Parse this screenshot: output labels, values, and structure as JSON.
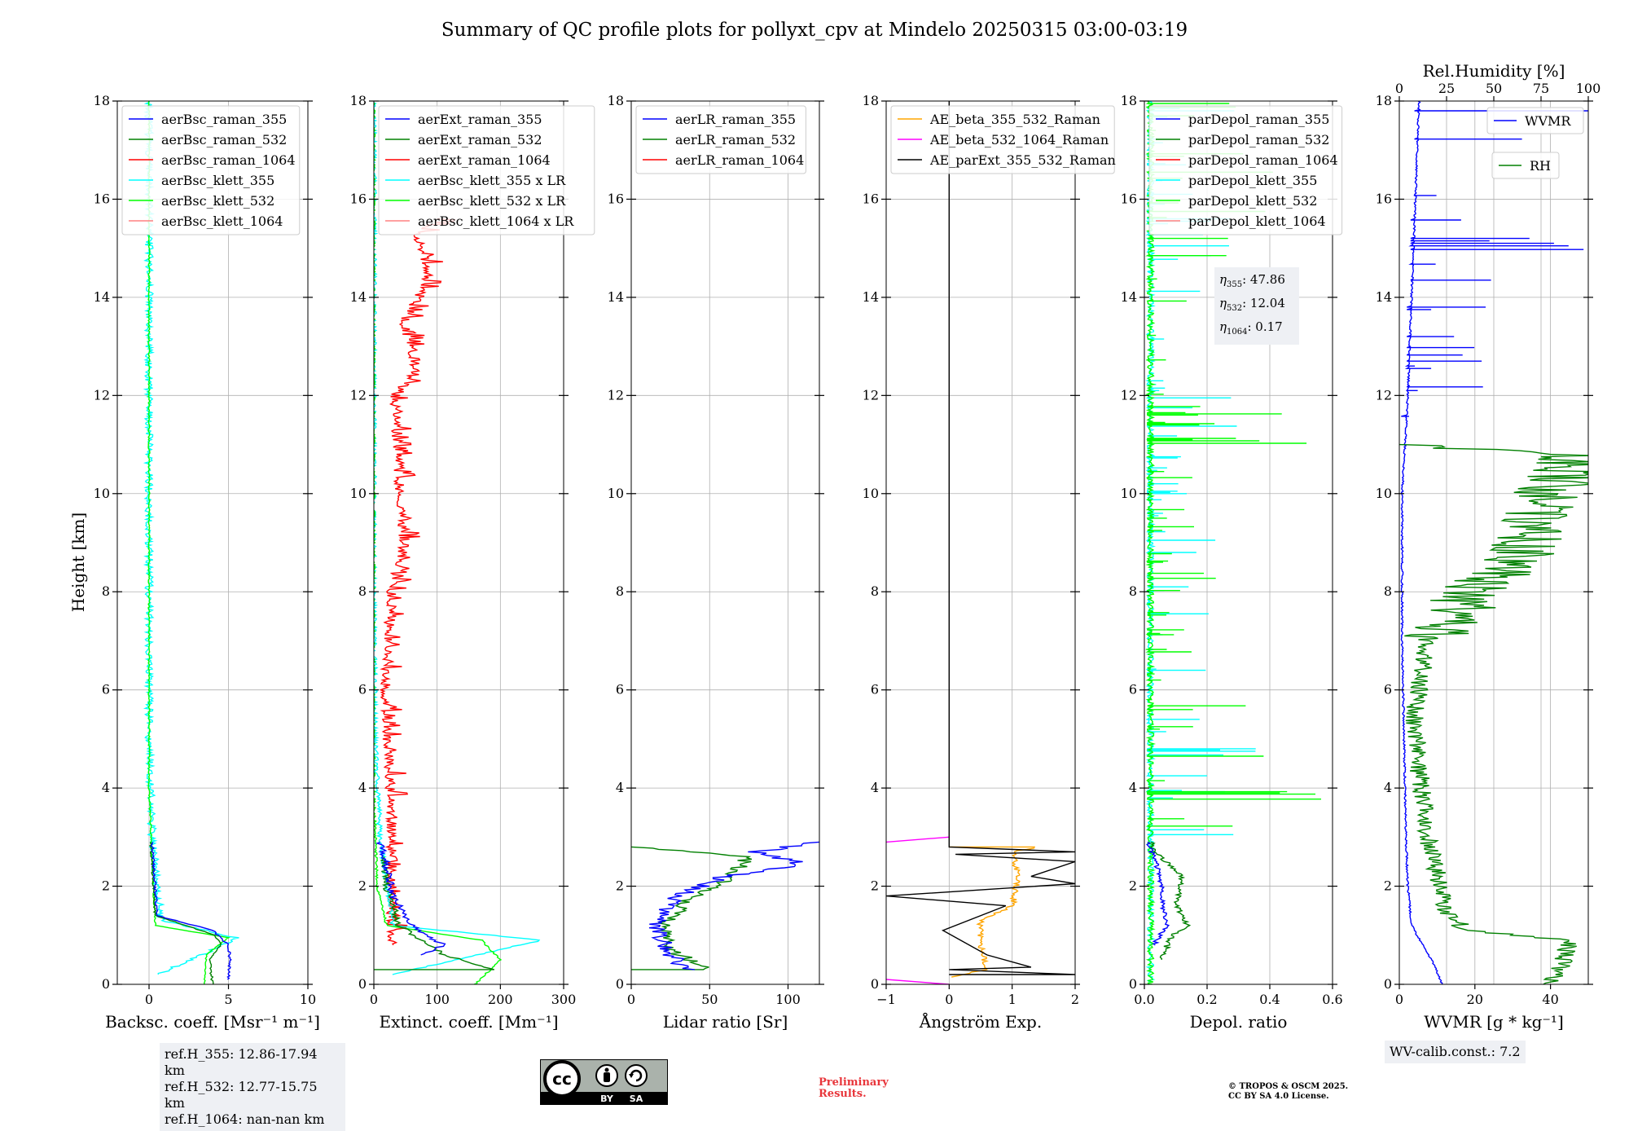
{
  "title": "Summary of QC profile plots for pollyxt_cpv at Mindelo 20250315 03:00-03:19",
  "ylabel": "Height [km]",
  "colors": {
    "blue": "#0000ff",
    "green": "#008000",
    "red": "#ff0000",
    "cyan": "#00ffff",
    "lime": "#00ff00",
    "salmon": "#ff8080",
    "orange": "#ffa500",
    "magenta": "#ff00ff",
    "black": "#000000",
    "grid": "#b0b0b0"
  },
  "chart_data": [
    {
      "type": "line",
      "id": "bsc",
      "xlabel": "Backsc. coeff. [Msr⁻¹ m⁻¹]",
      "xlim": [
        -2,
        10
      ],
      "ylim": [
        0,
        18
      ],
      "xticks": [
        0,
        5,
        10
      ],
      "yticks": [
        0,
        2,
        4,
        6,
        8,
        10,
        12,
        14,
        16,
        18
      ],
      "legend": [
        "aerBsc_raman_355",
        "aerBsc_raman_532",
        "aerBsc_raman_1064",
        "aerBsc_klett_355",
        "aerBsc_klett_532",
        "aerBsc_klett_1064"
      ],
      "legend_colors": [
        "blue",
        "green",
        "red",
        "cyan",
        "lime",
        "salmon"
      ],
      "series": [
        {
          "name": "aerBsc_klett_355",
          "color": "cyan",
          "style": "noisy",
          "pts": [
            [
              0.5,
              0.2
            ],
            [
              4,
              0.7
            ],
            [
              5.5,
              0.95
            ],
            [
              0.8,
              1.3
            ],
            [
              0.5,
              2.0
            ],
            [
              0.2,
              3.0
            ],
            [
              0,
              5
            ],
            [
              0,
              8
            ],
            [
              0,
              10
            ],
            [
              0,
              12
            ],
            [
              0,
              14
            ],
            [
              0,
              16
            ],
            [
              0,
              18
            ]
          ],
          "noise": 0.25
        },
        {
          "name": "aerBsc_klett_532",
          "color": "lime",
          "style": "noisy",
          "pts": [
            [
              3.5,
              0.0
            ],
            [
              3.6,
              0.6
            ],
            [
              5,
              0.95
            ],
            [
              0.4,
              1.2
            ],
            [
              0.2,
              2.5
            ],
            [
              0,
              4
            ],
            [
              0,
              8
            ],
            [
              0,
              12
            ],
            [
              0,
              18
            ]
          ],
          "noise": 0.05
        },
        {
          "name": "aerBsc_raman_532",
          "color": "green",
          "style": "noisy",
          "pts": [
            [
              4,
              0.0
            ],
            [
              3.8,
              0.5
            ],
            [
              4.5,
              0.8
            ],
            [
              4.2,
              1.0
            ],
            [
              0.4,
              1.4
            ],
            [
              0.2,
              2.5
            ],
            [
              0.1,
              2.9
            ]
          ],
          "noise": 0.08
        },
        {
          "name": "aerBsc_raman_355",
          "color": "blue",
          "style": "noisy",
          "pts": [
            [
              5,
              0.1
            ],
            [
              5.1,
              0.5
            ],
            [
              5,
              0.8
            ],
            [
              4,
              1.1
            ],
            [
              0.5,
              1.4
            ],
            [
              0.3,
              2.4
            ],
            [
              0.2,
              2.9
            ]
          ],
          "noise": 0.08
        }
      ],
      "refbox": [
        "ref.H_355: 12.86-17.94 km",
        "ref.H_532: 12.77-15.75 km",
        "ref.H_1064: nan-nan km"
      ]
    },
    {
      "type": "line",
      "id": "ext",
      "xlabel": "Extinct. coeff. [Mm⁻¹]",
      "xlim": [
        0,
        300
      ],
      "ylim": [
        0,
        18
      ],
      "xticks": [
        0,
        100,
        200,
        300
      ],
      "yticks": [
        0,
        2,
        4,
        6,
        8,
        10,
        12,
        14,
        16,
        18
      ],
      "legend": [
        "aerExt_raman_355",
        "aerExt_raman_532",
        "aerExt_raman_1064",
        "aerBsc_klett_355 x LR",
        "aerBsc_klett_532 x LR",
        "aerBsc_klett_1064 x LR"
      ],
      "legend_colors": [
        "blue",
        "green",
        "red",
        "cyan",
        "lime",
        "salmon"
      ],
      "series": [
        {
          "name": "aerExt_raman_1064",
          "color": "red",
          "style": "spiky",
          "pts": [
            [
              20,
              0.8
            ],
            [
              20,
              3.5
            ],
            [
              10,
              6
            ],
            [
              20,
              8
            ],
            [
              40,
              9
            ],
            [
              30,
              10.5
            ],
            [
              25,
              12
            ],
            [
              60,
              12.5
            ],
            [
              40,
              13.5
            ],
            [
              80,
              14.5
            ],
            [
              60,
              15.3
            ],
            [
              100,
              15.6
            ]
          ],
          "noise": 25
        },
        {
          "name": "aerBsc_klett_355 x LR",
          "color": "cyan",
          "style": "noisy",
          "pts": [
            [
              30,
              0.2
            ],
            [
              265,
              0.9
            ],
            [
              30,
              1.2
            ],
            [
              20,
              2
            ],
            [
              10,
              3
            ],
            [
              2,
              5
            ],
            [
              0,
              8
            ],
            [
              0,
              12
            ],
            [
              0,
              18
            ]
          ],
          "noise": 4
        },
        {
          "name": "aerBsc_klett_532 x LR",
          "color": "lime",
          "style": "noisy",
          "pts": [
            [
              160,
              0.0
            ],
            [
              200,
              0.5
            ],
            [
              170,
              0.9
            ],
            [
              20,
              1.2
            ],
            [
              5,
              2
            ],
            [
              0,
              4
            ],
            [
              0,
              18
            ]
          ],
          "noise": 2
        },
        {
          "name": "aerExt_raman_532",
          "color": "green",
          "style": "noisy",
          "pts": [
            [
              0,
              0.3
            ],
            [
              190,
              0.3
            ],
            [
              110,
              0.6
            ],
            [
              90,
              0.8
            ],
            [
              40,
              1.2
            ],
            [
              20,
              2
            ],
            [
              15,
              2.6
            ]
          ],
          "noise": 6
        },
        {
          "name": "aerExt_raman_355",
          "color": "blue",
          "style": "noisy",
          "pts": [
            [
              80,
              0.6
            ],
            [
              110,
              0.8
            ],
            [
              60,
              1.2
            ],
            [
              30,
              1.8
            ],
            [
              20,
              2.4
            ],
            [
              10,
              2.9
            ]
          ],
          "noise": 6
        }
      ]
    },
    {
      "type": "line",
      "id": "lr",
      "xlabel": "Lidar ratio [Sr]",
      "xlim": [
        0,
        120
      ],
      "ylim": [
        0,
        18
      ],
      "xticks": [
        0,
        50,
        100
      ],
      "yticks": [
        0,
        2,
        4,
        6,
        8,
        10,
        12,
        14,
        16,
        18
      ],
      "legend": [
        "aerLR_raman_355",
        "aerLR_raman_532",
        "aerLR_raman_1064"
      ],
      "legend_colors": [
        "blue",
        "green",
        "red"
      ],
      "series": [
        {
          "name": "aerLR_raman_532",
          "color": "green",
          "style": "noisy",
          "pts": [
            [
              0,
              0.3
            ],
            [
              50,
              0.3
            ],
            [
              25,
              0.7
            ],
            [
              20,
              1.2
            ],
            [
              40,
              1.8
            ],
            [
              60,
              2.1
            ],
            [
              75,
              2.6
            ],
            [
              0,
              2.8
            ]
          ],
          "noise": 5
        },
        {
          "name": "aerLR_raman_355",
          "color": "blue",
          "style": "noisy",
          "pts": [
            [
              35,
              0.3
            ],
            [
              25,
              0.6
            ],
            [
              15,
              1.2
            ],
            [
              30,
              1.8
            ],
            [
              60,
              2.2
            ],
            [
              110,
              2.45
            ],
            [
              80,
              2.7
            ],
            [
              120,
              2.9
            ]
          ],
          "noise": 6
        }
      ]
    },
    {
      "type": "line",
      "id": "ae",
      "xlabel": "Ångström Exp.",
      "xlim": [
        -1,
        2
      ],
      "ylim": [
        0,
        18
      ],
      "xticks": [
        -1,
        0,
        1,
        2
      ],
      "yticks": [
        0,
        2,
        4,
        6,
        8,
        10,
        12,
        14,
        16,
        18
      ],
      "legend": [
        "AE_beta_355_532_Raman",
        "AE_beta_532_1064_Raman",
        "AE_parExt_355_532_Raman"
      ],
      "legend_colors": [
        "orange",
        "magenta",
        "black"
      ],
      "series": [
        {
          "name": "AE_beta_355_532_Raman",
          "color": "orange",
          "style": "noisy",
          "pts": [
            [
              0,
              0.15
            ],
            [
              0.6,
              0.3
            ],
            [
              0.5,
              0.8
            ],
            [
              0.5,
              1.3
            ],
            [
              1.0,
              1.6
            ],
            [
              1.1,
              2.2
            ],
            [
              1.0,
              2.7
            ],
            [
              1.4,
              2.8
            ],
            [
              0,
              2.8
            ]
          ],
          "noise": 0.05
        },
        {
          "name": "AE_beta_532_1064_Raman",
          "color": "magenta",
          "style": "plain",
          "pts": [
            [
              -1,
              0.1
            ],
            [
              0,
              0.0
            ]
          ],
          "noise": 0
        },
        {
          "name": "AE_beta_532_1064_Raman_upper",
          "color": "magenta",
          "style": "plain",
          "pts": [
            [
              -1,
              2.9
            ],
            [
              0,
              3.0
            ]
          ],
          "noise": 0
        },
        {
          "name": "AE_parExt_355_532_Raman",
          "color": "black",
          "style": "plain",
          "pts": [
            [
              0,
              0.2
            ],
            [
              2,
              0.2
            ],
            [
              0,
              0.3
            ],
            [
              1.3,
              0.35
            ],
            [
              0.6,
              0.6
            ],
            [
              -0.1,
              1.1
            ],
            [
              0.9,
              1.6
            ],
            [
              -1,
              1.8
            ],
            [
              2,
              2.05
            ],
            [
              1.3,
              2.2
            ],
            [
              2,
              2.5
            ],
            [
              0.1,
              2.65
            ],
            [
              2,
              2.7
            ],
            [
              0,
              2.8
            ],
            [
              0,
              18
            ]
          ],
          "noise": 0
        }
      ]
    },
    {
      "type": "line",
      "id": "depol",
      "xlabel": "Depol. ratio",
      "xlim": [
        0,
        0.6
      ],
      "ylim": [
        0,
        18
      ],
      "xticks": [
        0.0,
        0.2,
        0.4,
        0.6
      ],
      "yticks": [
        0,
        2,
        4,
        6,
        8,
        10,
        12,
        14,
        16,
        18
      ],
      "legend": [
        "parDepol_raman_355",
        "parDepol_raman_532",
        "parDepol_raman_1064",
        "parDepol_klett_355",
        "parDepol_klett_532",
        "parDepol_klett_1064"
      ],
      "legend_colors": [
        "blue",
        "green",
        "red",
        "cyan",
        "lime",
        "salmon"
      ],
      "series": [
        {
          "name": "parDepol_klett_355",
          "color": "cyan",
          "style": "depol",
          "pts": [
            [
              0.01,
              0
            ],
            [
              0.01,
              18
            ]
          ],
          "noise": 0.35
        },
        {
          "name": "parDepol_klett_532",
          "color": "lime",
          "style": "depol",
          "pts": [
            [
              0.01,
              0
            ],
            [
              0.01,
              18
            ]
          ],
          "noise": 0.6
        },
        {
          "name": "parDepol_raman_532",
          "color": "green",
          "style": "noisy",
          "pts": [
            [
              0.05,
              0.5
            ],
            [
              0.09,
              1.0
            ],
            [
              0.14,
              1.2
            ],
            [
              0.1,
              1.6
            ],
            [
              0.12,
              2.2
            ],
            [
              0.05,
              2.6
            ],
            [
              0.02,
              2.9
            ]
          ],
          "noise": 0.01
        },
        {
          "name": "parDepol_raman_355",
          "color": "blue",
          "style": "noisy",
          "pts": [
            [
              0.03,
              0.8
            ],
            [
              0.07,
              1.2
            ],
            [
              0.06,
              1.6
            ],
            [
              0.05,
              2.2
            ],
            [
              0.03,
              2.6
            ],
            [
              0.01,
              2.9
            ]
          ],
          "noise": 0.008
        }
      ],
      "eta": [
        {
          "label": "η",
          "sub": "355",
          "value": ": 47.86"
        },
        {
          "label": "η",
          "sub": "532",
          "value": ": 12.04"
        },
        {
          "label": "η",
          "sub": "1064",
          "value": ": 0.17"
        }
      ]
    },
    {
      "type": "line",
      "id": "wv",
      "xlabel": "WVMR [g * kg⁻¹]",
      "xlim": [
        0,
        50
      ],
      "ylim": [
        0,
        18
      ],
      "xticks": [
        0,
        20,
        40
      ],
      "yticks": [
        0,
        2,
        4,
        6,
        8,
        10,
        12,
        14,
        16,
        18
      ],
      "top_xlabel": "Rel.Humidity [%]",
      "top_xlim": [
        0,
        100
      ],
      "top_xticks": [
        0,
        25,
        50,
        75,
        100
      ],
      "legend": [
        "WVMR",
        "RH"
      ],
      "legend_colors": [
        "blue",
        "green"
      ],
      "series": [
        {
          "name": "WVMR",
          "color": "blue",
          "style": "wvmr",
          "pts": [
            [
              11,
              0.0
            ],
            [
              9,
              0.4
            ],
            [
              6,
              0.8
            ],
            [
              3,
              1.2
            ],
            [
              2,
              2
            ],
            [
              1.5,
              3
            ],
            [
              1,
              5
            ],
            [
              0.5,
              7
            ],
            [
              0.5,
              10
            ],
            [
              2,
              12
            ],
            [
              3,
              14
            ],
            [
              4,
              16
            ],
            [
              5,
              18
            ]
          ],
          "noise": 0.5
        },
        {
          "name": "RH",
          "color": "green",
          "style": "rh",
          "axis": "top",
          "pts": [
            [
              80,
              0.0
            ],
            [
              85,
              0.3
            ],
            [
              90,
              0.9
            ],
            [
              35,
              1.1
            ],
            [
              25,
              1.5
            ],
            [
              20,
              2.2
            ],
            [
              15,
              3.0
            ],
            [
              10,
              4.5
            ],
            [
              8,
              5.5
            ],
            [
              15,
              7
            ],
            [
              40,
              8
            ],
            [
              70,
              9
            ],
            [
              80,
              10
            ],
            [
              95,
              10.8
            ],
            [
              0,
              11
            ]
          ],
          "noise": 5
        }
      ],
      "calib": "WV-calib.const.: 7.2"
    }
  ],
  "footer": {
    "prelim_line1": "Preliminary",
    "prelim_line2": "Results.",
    "copyright_line1": "© TROPOS & OSCM 2025.",
    "copyright_line2": "CC BY SA 4.0 License.",
    "cc_labels": [
      "cc",
      "BY",
      "SA"
    ]
  }
}
